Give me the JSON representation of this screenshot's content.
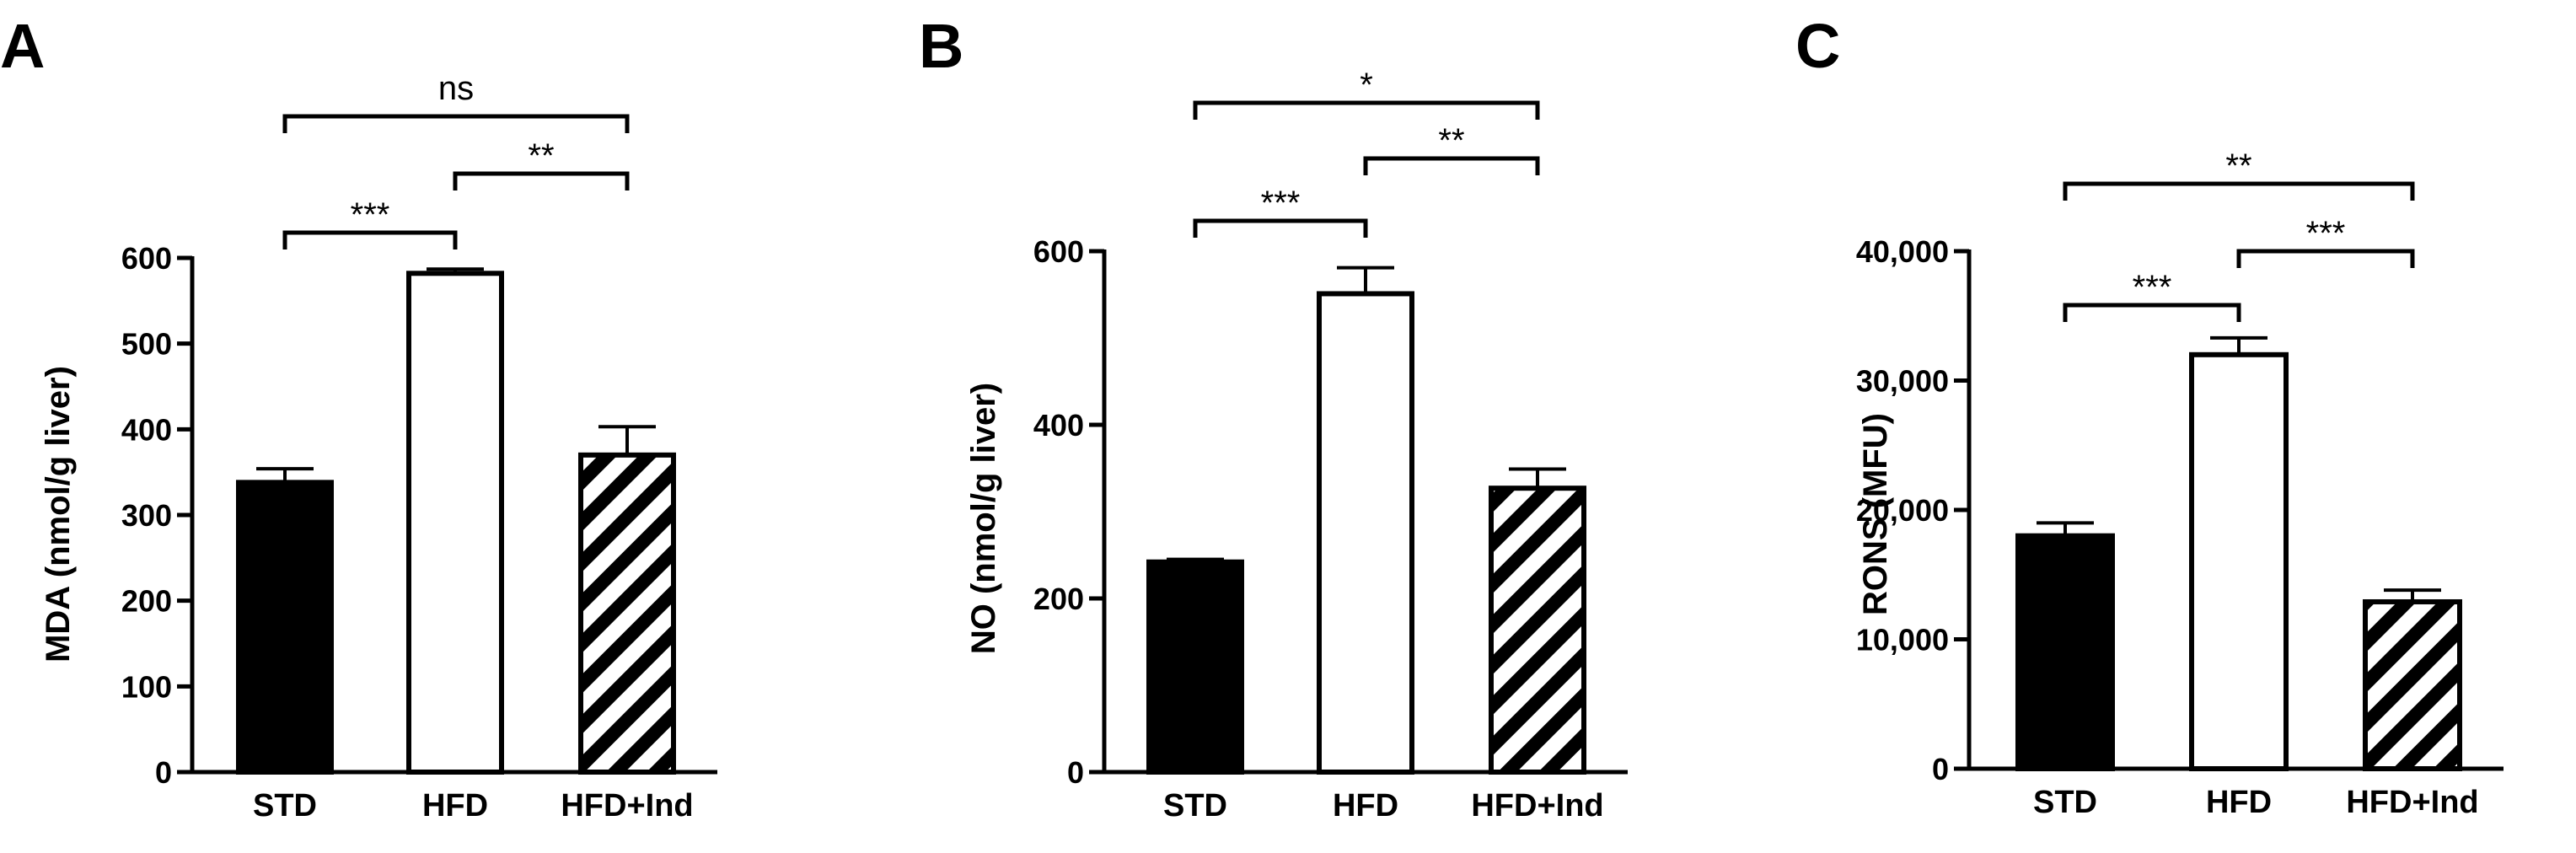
{
  "colors": {
    "ink": "#000000",
    "background": "#ffffff",
    "hfd_fill": "#ffffff",
    "std_fill": "#000000"
  },
  "chart_data": [
    {
      "type": "bar",
      "panel": "A",
      "categories": [
        "STD",
        "HFD",
        "HFD+Ind"
      ],
      "values": [
        338,
        582,
        370
      ],
      "errors": [
        16,
        5,
        33
      ],
      "bar_styles": [
        "solid-black",
        "white",
        "hatched"
      ],
      "ylabel": "MDA (nmol/g liver)",
      "ylim": [
        0,
        600
      ],
      "yticks": [
        0,
        100,
        200,
        300,
        400,
        500,
        600
      ],
      "ytick_labels": [
        "0",
        "100",
        "200",
        "300",
        "400",
        "500",
        "600"
      ],
      "significance": [
        {
          "from": 0,
          "to": 1,
          "label": "***",
          "level": 1
        },
        {
          "from": 1,
          "to": 2,
          "label": "**",
          "level": 2
        },
        {
          "from": 0,
          "to": 2,
          "label": "ns",
          "level": 3
        }
      ]
    },
    {
      "type": "bar",
      "panel": "B",
      "categories": [
        "STD",
        "HFD",
        "HFD+Ind"
      ],
      "values": [
        242,
        551,
        327
      ],
      "errors": [
        3,
        30,
        22
      ],
      "bar_styles": [
        "solid-black",
        "white",
        "hatched"
      ],
      "ylabel": "NO (nmol/g liver)",
      "ylim": [
        0,
        600
      ],
      "yticks": [
        0,
        200,
        400,
        600
      ],
      "ytick_labels": [
        "0",
        "200",
        "400",
        "600"
      ],
      "significance": [
        {
          "from": 0,
          "to": 1,
          "label": "***",
          "level": 1
        },
        {
          "from": 1,
          "to": 2,
          "label": "**",
          "level": 2
        },
        {
          "from": 0,
          "to": 2,
          "label": "*",
          "level": 3
        }
      ]
    },
    {
      "type": "bar",
      "panel": "C",
      "categories": [
        "STD",
        "HFD",
        "HFD+Ind"
      ],
      "values": [
        18000,
        32000,
        12900
      ],
      "errors": [
        1000,
        1300,
        900
      ],
      "bar_styles": [
        "solid-black",
        "white",
        "hatched"
      ],
      "ylabel": "RONS (MFU)",
      "ylim": [
        0,
        40000
      ],
      "yticks": [
        0,
        10000,
        20000,
        30000,
        40000
      ],
      "ytick_labels": [
        "0",
        "10,000",
        "20,000",
        "30,000",
        "40,000"
      ],
      "significance": [
        {
          "from": 0,
          "to": 1,
          "label": "***",
          "level": 1
        },
        {
          "from": 1,
          "to": 2,
          "label": "***",
          "level": 2
        },
        {
          "from": 0,
          "to": 2,
          "label": "**",
          "level": 3
        }
      ]
    }
  ]
}
